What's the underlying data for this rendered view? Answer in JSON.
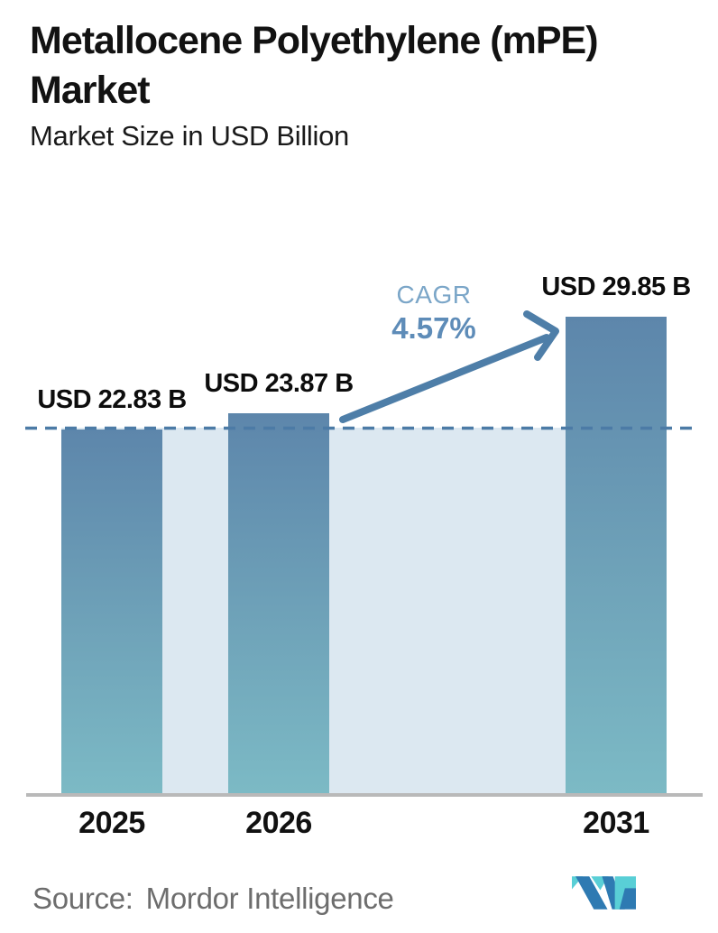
{
  "header": {
    "title": "Metallocene Polyethylene (mPE) Market",
    "title_line1": "Metallocene Polyethylene (mPE)",
    "title_line2": "Market",
    "subtitle": "Market Size in USD Billion"
  },
  "annotations": {
    "cagr_label": "CAGR",
    "cagr_value": "4.57%"
  },
  "footer": {
    "source_label": "Source:",
    "source_name": "Mordor Intelligence",
    "logo_icon": "mordor-intelligence-logo"
  },
  "colors": {
    "bar_top": "#5d86ab",
    "bar_bottom": "#7cbac5",
    "plot_band": "#dce8f1",
    "dashed_line": "#4c7ba6",
    "arrow": "#4e7ea8",
    "cagr_label_text": "#7ba6c8",
    "cagr_value_text": "#5e8cb8",
    "baseline": "#b9b9b9",
    "footer_text": "#6d6d6d",
    "logo_dark_blue": "#2e7ab2",
    "logo_teal": "#59cfd6",
    "label_text": "#0d0d0d"
  },
  "chart_data": {
    "type": "bar",
    "categories": [
      "2025",
      "2026",
      "2031"
    ],
    "values": [
      22.83,
      23.87,
      29.85
    ],
    "value_labels": [
      "USD 22.83 B",
      "USD 23.87 B",
      "USD 29.85 B"
    ],
    "title": "Metallocene Polyethylene (mPE) Market",
    "subtitle": "Market Size in USD Billion",
    "unit": "USD Billion",
    "ylim": [
      0,
      31
    ],
    "grid": false,
    "legend": false,
    "reference_line_value": 22.83,
    "reference_line_style": "dashed",
    "cagr_percent": 4.57
  }
}
